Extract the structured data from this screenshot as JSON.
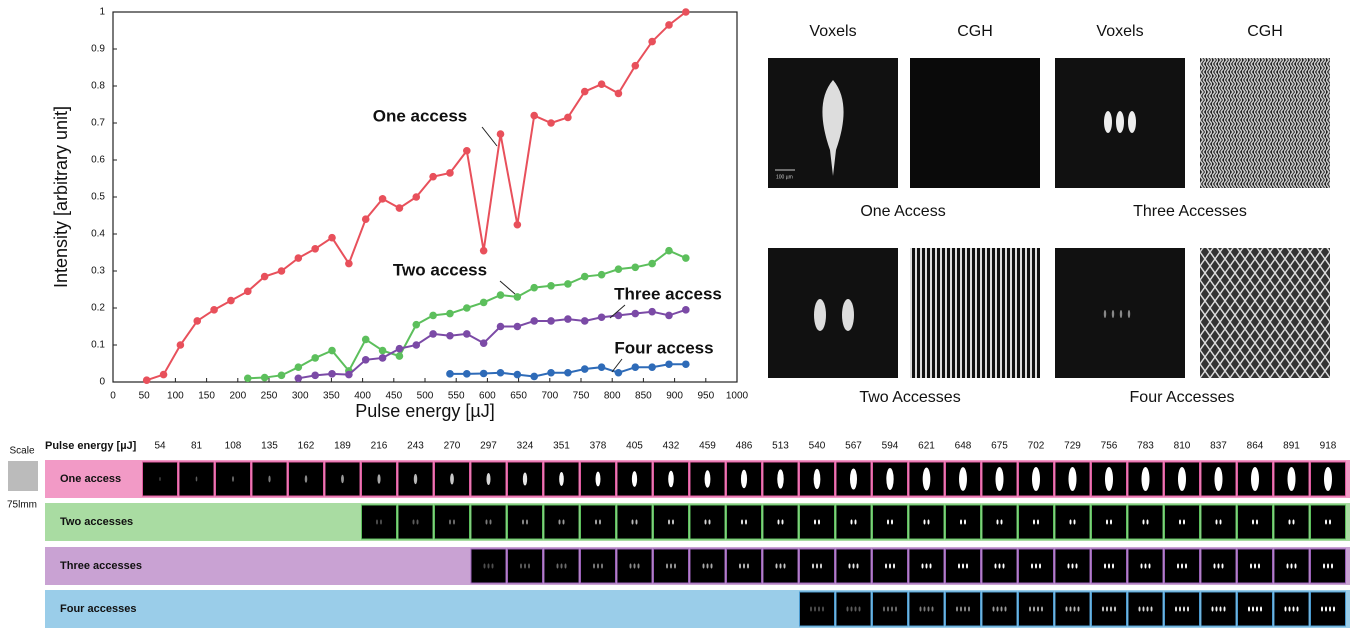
{
  "chart_data": {
    "type": "line",
    "x_label": "Pulse energy [µJ]",
    "y_label": "Intensity [arbitrary unit]",
    "xlim": [
      0,
      1000
    ],
    "xticks": [
      0,
      50,
      100,
      150,
      200,
      250,
      300,
      350,
      400,
      450,
      500,
      550,
      600,
      650,
      700,
      750,
      800,
      850,
      900,
      950,
      1000
    ],
    "ylim": [
      0,
      1
    ],
    "yticks": [
      0,
      0.1,
      0.2,
      0.3,
      0.4,
      0.5,
      0.6,
      0.7,
      0.8,
      0.9,
      1
    ],
    "series": [
      {
        "name": "One access",
        "color": "#e8505b",
        "x": [
          54,
          81,
          108,
          135,
          162,
          189,
          216,
          243,
          270,
          297,
          324,
          351,
          378,
          405,
          432,
          459,
          486,
          513,
          540,
          567,
          594,
          621,
          648,
          675,
          702,
          729,
          756,
          783,
          810,
          837,
          864,
          891,
          918
        ],
        "values": [
          0.005,
          0.02,
          0.1,
          0.165,
          0.195,
          0.22,
          0.245,
          0.285,
          0.3,
          0.335,
          0.36,
          0.39,
          0.32,
          0.44,
          0.495,
          0.47,
          0.5,
          0.555,
          0.565,
          0.625,
          0.355,
          0.67,
          0.425,
          0.72,
          0.7,
          0.715,
          0.785,
          0.805,
          0.78,
          0.855,
          0.92,
          0.965,
          1.0
        ]
      },
      {
        "name": "Two access",
        "color": "#5cbf5c",
        "x": [
          216,
          243,
          270,
          297,
          324,
          351,
          378,
          405,
          432,
          459,
          486,
          513,
          540,
          567,
          594,
          621,
          648,
          675,
          702,
          729,
          756,
          783,
          810,
          837,
          864,
          891,
          918
        ],
        "values": [
          0.01,
          0.012,
          0.018,
          0.04,
          0.065,
          0.085,
          0.03,
          0.115,
          0.085,
          0.07,
          0.155,
          0.18,
          0.185,
          0.2,
          0.215,
          0.235,
          0.23,
          0.255,
          0.26,
          0.265,
          0.285,
          0.29,
          0.305,
          0.31,
          0.32,
          0.355,
          0.335
        ]
      },
      {
        "name": "Three access",
        "color": "#7b4aa6",
        "x": [
          297,
          324,
          351,
          378,
          405,
          432,
          459,
          486,
          513,
          540,
          567,
          594,
          621,
          648,
          675,
          702,
          729,
          756,
          783,
          810,
          837,
          864,
          891,
          918
        ],
        "values": [
          0.01,
          0.018,
          0.022,
          0.02,
          0.06,
          0.065,
          0.09,
          0.1,
          0.13,
          0.125,
          0.13,
          0.105,
          0.15,
          0.15,
          0.165,
          0.165,
          0.17,
          0.165,
          0.175,
          0.18,
          0.185,
          0.19,
          0.18,
          0.195
        ]
      },
      {
        "name": "Four access",
        "color": "#2e6bb8",
        "x": [
          540,
          567,
          594,
          621,
          648,
          675,
          702,
          729,
          756,
          783,
          810,
          837,
          864,
          891,
          918
        ],
        "values": [
          0.022,
          0.022,
          0.023,
          0.025,
          0.02,
          0.015,
          0.025,
          0.025,
          0.035,
          0.04,
          0.025,
          0.04,
          0.04,
          0.048,
          0.048
        ]
      }
    ]
  },
  "panels": {
    "headers": [
      "Voxels",
      "CGH",
      "Voxels",
      "CGH"
    ],
    "captions": [
      "One Access",
      "Three Accesses",
      "Two Accesses",
      "Four Accesses"
    ],
    "scale_bar": "100 µm"
  },
  "strip": {
    "header": "Pulse energy [µJ]",
    "scale": "Scale",
    "scale_value": "75lmm",
    "energies": [
      54,
      81,
      108,
      135,
      162,
      189,
      216,
      243,
      270,
      297,
      324,
      351,
      378,
      405,
      432,
      459,
      486,
      513,
      540,
      567,
      594,
      621,
      648,
      675,
      702,
      729,
      756,
      783,
      810,
      837,
      864,
      891,
      918
    ],
    "rows": [
      "One access",
      "Two accesses",
      "Three accesses",
      "Four accesses"
    ]
  }
}
